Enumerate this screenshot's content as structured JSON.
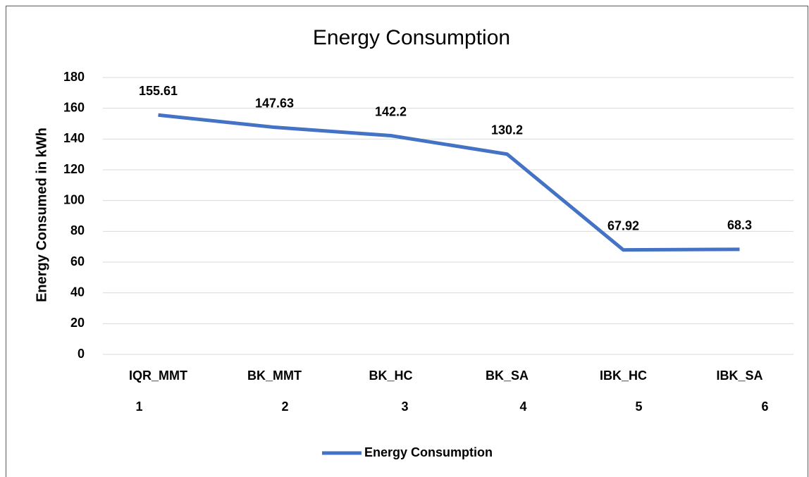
{
  "chart_data": {
    "type": "line",
    "title": "Energy Consumption",
    "y_label": "Energy Consumed in kWh",
    "categories": [
      "IQR_MMT",
      "BK_MMT",
      "BK_HC",
      "BK_SA",
      "IBK_HC",
      "IBK_SA"
    ],
    "category_numbers": [
      1,
      2,
      3,
      4,
      5,
      6
    ],
    "series": [
      {
        "name": "Energy Consumption",
        "color": "#4472c4",
        "values": [
          155.61,
          147.63,
          142.2,
          130.2,
          67.92,
          68.3
        ]
      }
    ],
    "ylim": [
      0,
      180
    ],
    "yticks": [
      0,
      20,
      40,
      60,
      80,
      100,
      120,
      140,
      160,
      180
    ],
    "grid": true,
    "legend": "bottom"
  }
}
